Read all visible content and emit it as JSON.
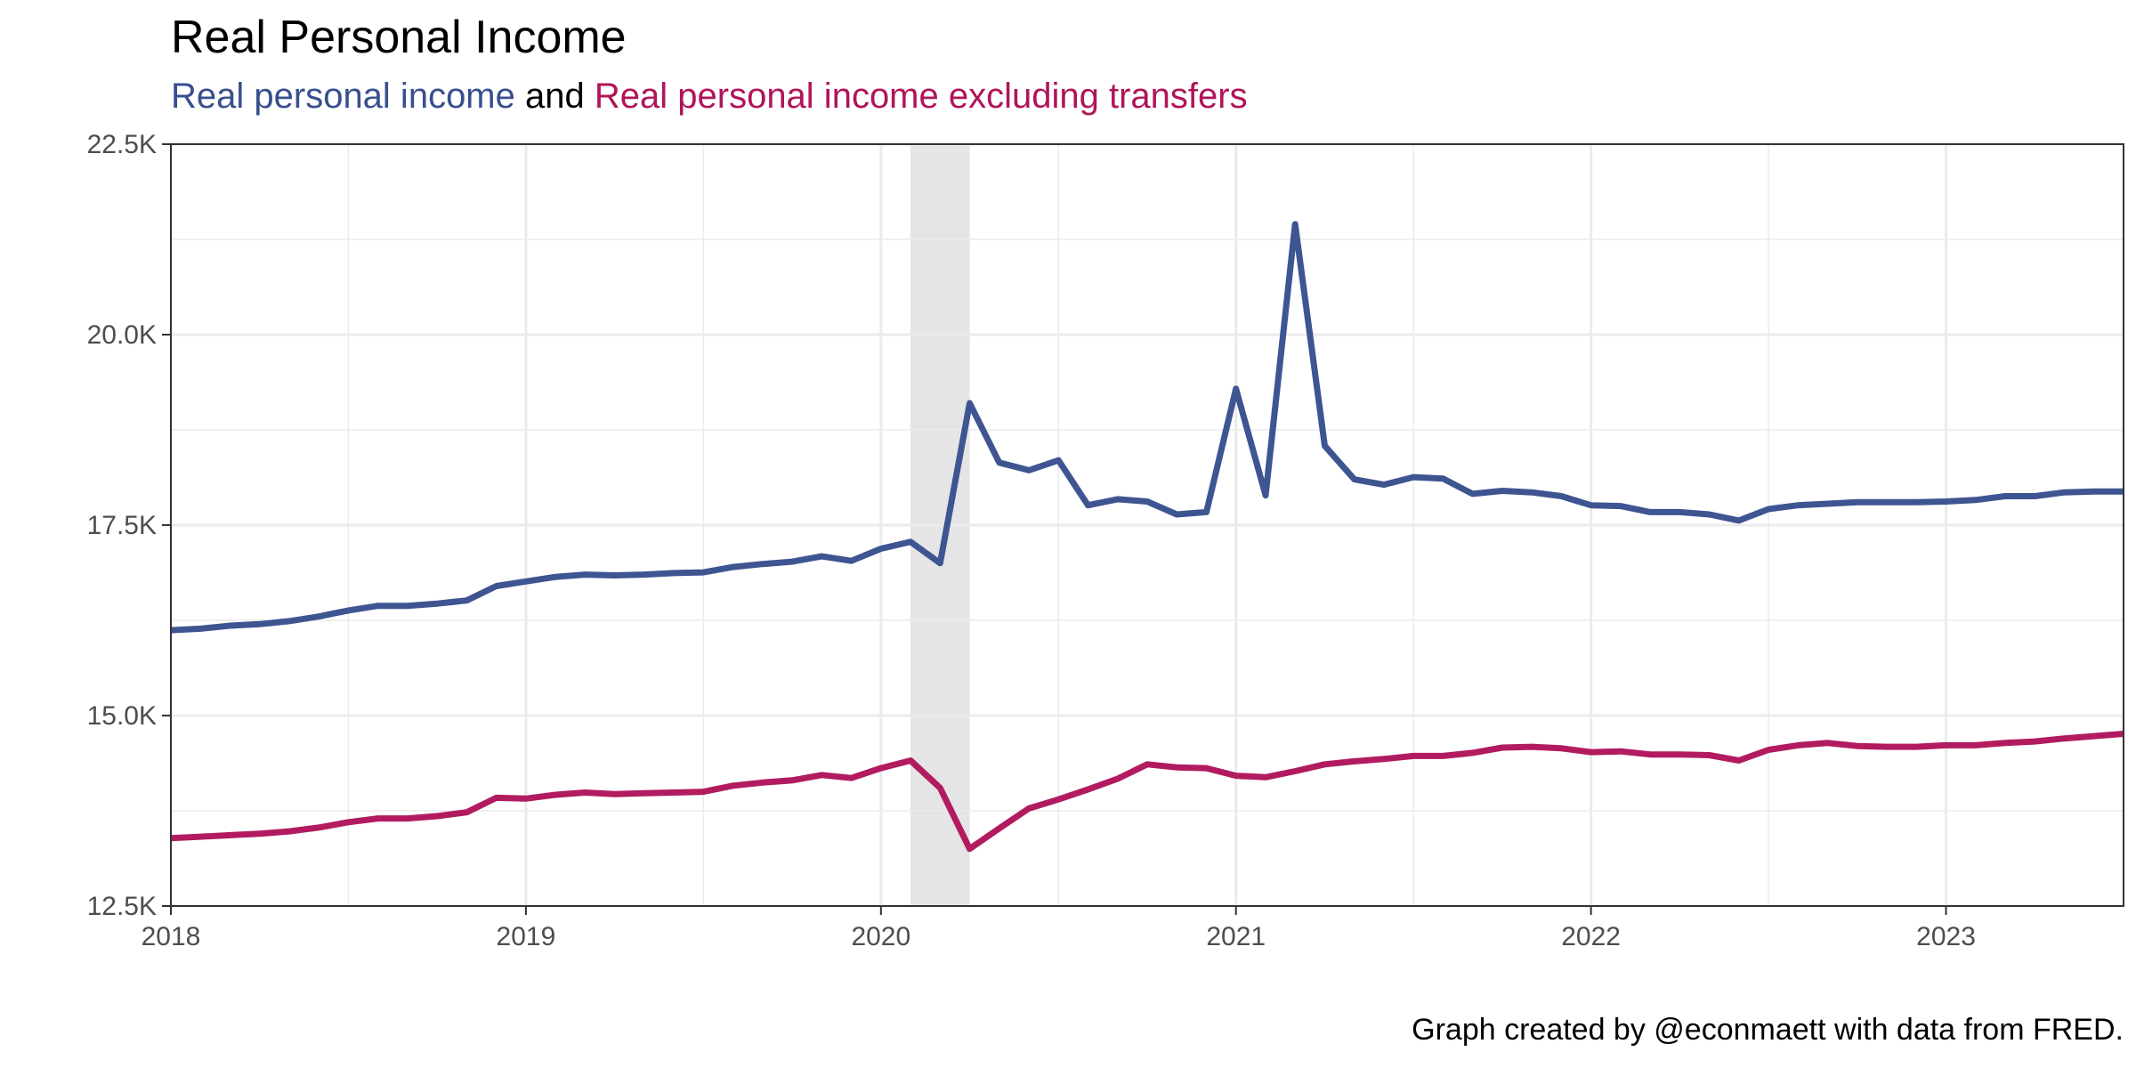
{
  "chart_data": {
    "type": "line",
    "title": "Real Personal Income",
    "subtitle": {
      "series1_label": "Real personal income",
      "connector": "and",
      "series2_label": "Real personal income excluding transfers"
    },
    "caption": "Graph created by @econmaett with data from FRED.",
    "xlabel": "",
    "ylabel": "",
    "x_range": [
      "2018-01-01",
      "2023-07-01"
    ],
    "ylim": [
      12500,
      22500
    ],
    "x_ticks": [
      {
        "date": "2018-01-01",
        "label": "2018"
      },
      {
        "date": "2019-01-01",
        "label": "2019"
      },
      {
        "date": "2020-01-01",
        "label": "2020"
      },
      {
        "date": "2021-01-01",
        "label": "2021"
      },
      {
        "date": "2022-01-01",
        "label": "2022"
      },
      {
        "date": "2023-01-01",
        "label": "2023"
      }
    ],
    "y_ticks": [
      {
        "value": 12500,
        "label": "12.5K"
      },
      {
        "value": 15000,
        "label": "15.0K"
      },
      {
        "value": 17500,
        "label": "17.5K"
      },
      {
        "value": 20000,
        "label": "20.0K"
      },
      {
        "value": 22500,
        "label": "22.5K"
      }
    ],
    "grid": true,
    "recession_shading": {
      "start": "2020-02-01",
      "end": "2020-04-01",
      "color": "#e5e5e5"
    },
    "x": [
      "2018-01-01",
      "2018-02-01",
      "2018-03-01",
      "2018-04-01",
      "2018-05-01",
      "2018-06-01",
      "2018-07-01",
      "2018-08-01",
      "2018-09-01",
      "2018-10-01",
      "2018-11-01",
      "2018-12-01",
      "2019-01-01",
      "2019-02-01",
      "2019-03-01",
      "2019-04-01",
      "2019-05-01",
      "2019-06-01",
      "2019-07-01",
      "2019-08-01",
      "2019-09-01",
      "2019-10-01",
      "2019-11-01",
      "2019-12-01",
      "2020-01-01",
      "2020-02-01",
      "2020-03-01",
      "2020-04-01",
      "2020-05-01",
      "2020-06-01",
      "2020-07-01",
      "2020-08-01",
      "2020-09-01",
      "2020-10-01",
      "2020-11-01",
      "2020-12-01",
      "2021-01-01",
      "2021-02-01",
      "2021-03-01",
      "2021-04-01",
      "2021-05-01",
      "2021-06-01",
      "2021-07-01",
      "2021-08-01",
      "2021-09-01",
      "2021-10-01",
      "2021-11-01",
      "2021-12-01",
      "2022-01-01",
      "2022-02-01",
      "2022-03-01",
      "2022-04-01",
      "2022-05-01",
      "2022-06-01",
      "2022-07-01",
      "2022-08-01",
      "2022-09-01",
      "2022-10-01",
      "2022-11-01",
      "2022-12-01",
      "2023-01-01",
      "2023-02-01",
      "2023-03-01",
      "2023-04-01",
      "2023-05-01",
      "2023-06-01",
      "2023-07-01"
    ],
    "series": [
      {
        "name": "Real personal income",
        "color": "#384f8e",
        "values": [
          16120,
          16140,
          16180,
          16200,
          16240,
          16300,
          16380,
          16440,
          16440,
          16470,
          16510,
          16700,
          16760,
          16820,
          16850,
          16840,
          16850,
          16870,
          16880,
          16950,
          16990,
          17020,
          17090,
          17030,
          17190,
          17280,
          17000,
          19100,
          18320,
          18220,
          18350,
          17760,
          17840,
          17810,
          17640,
          17670,
          19290,
          17890,
          21450,
          18540,
          18100,
          18030,
          18130,
          18110,
          17910,
          17950,
          17930,
          17880,
          17760,
          17750,
          17670,
          17670,
          17640,
          17560,
          17710,
          17760,
          17780,
          17800,
          17800,
          17800,
          17810,
          17830,
          17880,
          17880,
          17930,
          17940,
          17940
        ]
      },
      {
        "name": "Real personal income excluding transfers",
        "color": "#b0145a",
        "values": [
          13390,
          13410,
          13430,
          13450,
          13480,
          13530,
          13600,
          13650,
          13650,
          13680,
          13730,
          13920,
          13910,
          13960,
          13990,
          13970,
          13980,
          13990,
          14000,
          14080,
          14120,
          14150,
          14220,
          14180,
          14310,
          14410,
          14050,
          13250,
          13520,
          13780,
          13900,
          14030,
          14170,
          14360,
          14320,
          14310,
          14210,
          14190,
          14270,
          14360,
          14400,
          14430,
          14470,
          14470,
          14510,
          14580,
          14590,
          14570,
          14520,
          14530,
          14490,
          14490,
          14480,
          14410,
          14550,
          14610,
          14640,
          14600,
          14590,
          14590,
          14610,
          14610,
          14640,
          14660,
          14700,
          14730,
          14760
        ]
      }
    ]
  }
}
